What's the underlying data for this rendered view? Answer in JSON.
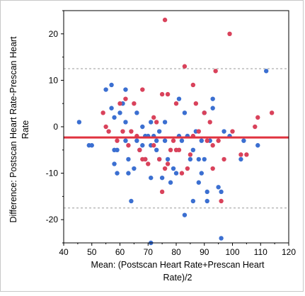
{
  "chart_data": {
    "type": "scatter",
    "title": "",
    "xlabel_lines": [
      "Mean: (Postscan Heart Rate+Prescan Heart",
      "Rate)/2"
    ],
    "ylabel_lines": [
      "Difference: Postscan Heart Rate-Prescan Heart",
      "Rate"
    ],
    "xlim": [
      40,
      120
    ],
    "ylim": [
      -25,
      25
    ],
    "x_ticks": [
      40,
      50,
      60,
      70,
      80,
      90,
      100,
      110,
      120
    ],
    "y_ticks": [
      -20,
      -10,
      0,
      10,
      20
    ],
    "grid": false,
    "mean_line": {
      "y": -2.3,
      "color": "#e0323f"
    },
    "limit_lines": [
      {
        "y": 12.5,
        "color": "#999999"
      },
      {
        "y": -17.5,
        "color": "#999999"
      }
    ],
    "series": [
      {
        "color": "#3b6fd1",
        "points": [
          [
            45.5,
            1
          ],
          [
            49,
            -4
          ],
          [
            50,
            -4
          ],
          [
            55,
            8
          ],
          [
            57,
            9
          ],
          [
            57,
            4
          ],
          [
            58,
            2
          ],
          [
            58,
            -5
          ],
          [
            59,
            -5
          ],
          [
            58,
            -8
          ],
          [
            59,
            -10
          ],
          [
            60,
            3
          ],
          [
            61,
            5
          ],
          [
            62,
            1
          ],
          [
            62,
            -3
          ],
          [
            62,
            8
          ],
          [
            63,
            -7
          ],
          [
            63,
            -10
          ],
          [
            64,
            -16
          ],
          [
            65,
            -9
          ],
          [
            66,
            3
          ],
          [
            66,
            -3
          ],
          [
            67,
            -5
          ],
          [
            68,
            0
          ],
          [
            68,
            -4
          ],
          [
            69,
            -2
          ],
          [
            69,
            -7
          ],
          [
            70,
            -2
          ],
          [
            71,
            1
          ],
          [
            71,
            -4
          ],
          [
            71,
            -11
          ],
          [
            72,
            -2
          ],
          [
            73,
            -3
          ],
          [
            73,
            -5
          ],
          [
            74,
            -1
          ],
          [
            74,
            -7
          ],
          [
            75,
            -11
          ],
          [
            76,
            1
          ],
          [
            76,
            -3
          ],
          [
            77,
            -7
          ],
          [
            78,
            -12
          ],
          [
            79,
            -9
          ],
          [
            80,
            -10
          ],
          [
            81,
            6
          ],
          [
            81,
            -2
          ],
          [
            82,
            -3
          ],
          [
            83,
            3
          ],
          [
            83,
            -19
          ],
          [
            84,
            -2
          ],
          [
            84,
            -2
          ],
          [
            85,
            -7
          ],
          [
            86,
            -5
          ],
          [
            86,
            -16
          ],
          [
            87,
            -1
          ],
          [
            88,
            -7
          ],
          [
            88,
            -12
          ],
          [
            89,
            -3
          ],
          [
            89,
            -10
          ],
          [
            90,
            3
          ],
          [
            90,
            -7
          ],
          [
            91,
            -14
          ],
          [
            91,
            -16
          ],
          [
            92,
            -3
          ],
          [
            93,
            4
          ],
          [
            93,
            6
          ],
          [
            95,
            -13
          ],
          [
            96,
            -14
          ],
          [
            96,
            -24
          ],
          [
            97,
            -1
          ],
          [
            99,
            -2
          ],
          [
            103,
            -7
          ],
          [
            104,
            -3
          ],
          [
            109,
            -4
          ],
          [
            112,
            12
          ],
          [
            71,
            -25
          ]
        ]
      },
      {
        "color": "#d9425b",
        "points": [
          [
            54,
            3
          ],
          [
            55,
            0
          ],
          [
            56,
            -1
          ],
          [
            59,
            -3
          ],
          [
            60,
            5
          ],
          [
            61,
            -1
          ],
          [
            62,
            6
          ],
          [
            63,
            -4
          ],
          [
            64,
            -1
          ],
          [
            65,
            5
          ],
          [
            66,
            -2
          ],
          [
            67,
            -5
          ],
          [
            68,
            -7
          ],
          [
            68,
            8
          ],
          [
            69,
            -7
          ],
          [
            70,
            -8
          ],
          [
            72,
            -4
          ],
          [
            72,
            2
          ],
          [
            73,
            1
          ],
          [
            74,
            -7
          ],
          [
            75,
            -14
          ],
          [
            75,
            7
          ],
          [
            76,
            23
          ],
          [
            76,
            -9
          ],
          [
            77,
            -8
          ],
          [
            77,
            7
          ],
          [
            78,
            -5
          ],
          [
            79,
            -3
          ],
          [
            80,
            -5
          ],
          [
            80,
            5
          ],
          [
            81,
            -5
          ],
          [
            82,
            -10
          ],
          [
            83,
            13
          ],
          [
            84,
            -9
          ],
          [
            85,
            -6
          ],
          [
            86,
            9
          ],
          [
            86,
            -2
          ],
          [
            87,
            5
          ],
          [
            88,
            -1
          ],
          [
            90,
            3
          ],
          [
            91,
            -3
          ],
          [
            92,
            1
          ],
          [
            93,
            -4
          ],
          [
            93,
            -9
          ],
          [
            94,
            12
          ],
          [
            95,
            -3
          ],
          [
            96,
            -16
          ],
          [
            97,
            -7
          ],
          [
            99,
            20
          ],
          [
            100,
            -1
          ],
          [
            103,
            -6
          ],
          [
            105,
            -6
          ],
          [
            108,
            0
          ],
          [
            109,
            2
          ],
          [
            114,
            3
          ]
        ]
      }
    ]
  }
}
